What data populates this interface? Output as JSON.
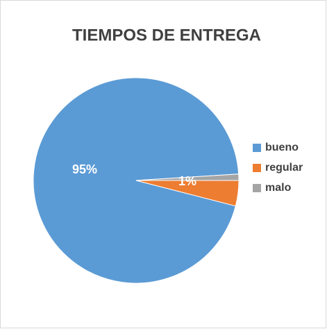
{
  "chart_data": {
    "type": "pie",
    "title": "TIEMPOS DE ENTREGA",
    "categories": [
      "bueno",
      "regular",
      "malo"
    ],
    "values": [
      95,
      4,
      1
    ],
    "value_labels": [
      "95%",
      null,
      "1%"
    ],
    "colors": [
      "#5b9bd5",
      "#ed7d31",
      "#a5a5a5"
    ],
    "legend": "right"
  }
}
